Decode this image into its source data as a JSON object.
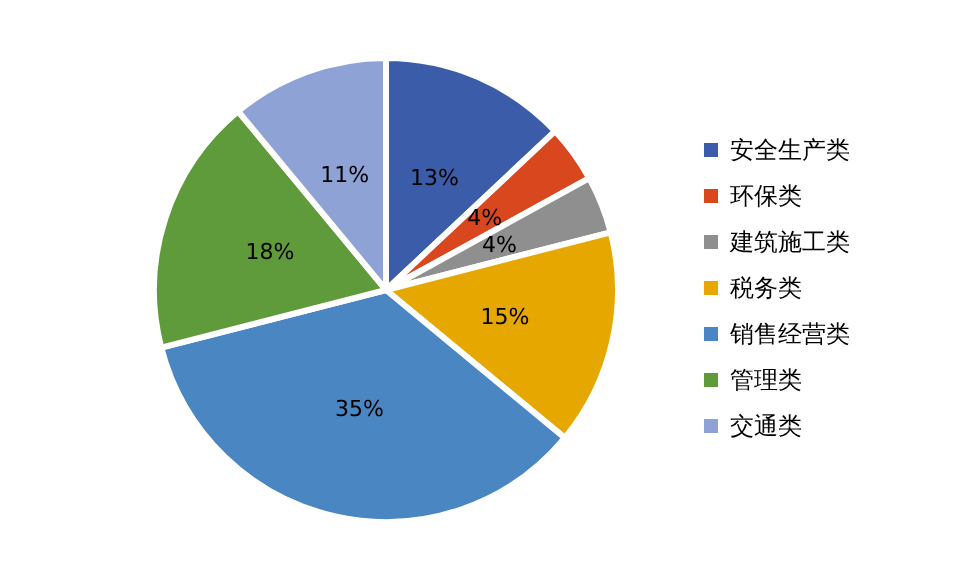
{
  "chart_data": {
    "type": "pie",
    "categories": [
      "安全生产类",
      "环保类",
      "建筑施工类",
      "税务类",
      "销售经营类",
      "管理类",
      "交通类"
    ],
    "values": [
      13,
      4,
      4,
      15,
      35,
      18,
      11
    ],
    "value_labels": [
      "13%",
      "4%",
      "4%",
      "15%",
      "35%",
      "18%",
      "11%"
    ],
    "colors": [
      "#3b5ca8",
      "#d9471f",
      "#8f8f8f",
      "#e6a700",
      "#4a86c2",
      "#5f9a3b",
      "#8fa2d6"
    ],
    "legend": "right"
  }
}
